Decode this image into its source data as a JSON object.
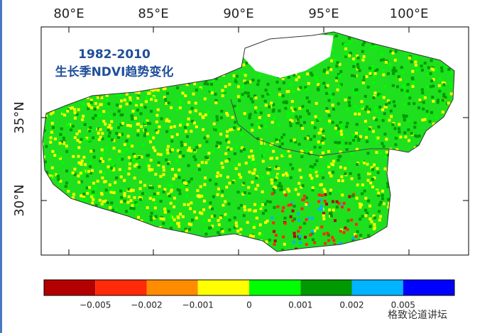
{
  "map": {
    "title": "1982-2010",
    "subtitle": "生长季NDVI趋势变化",
    "lon_ticks": [
      "80°E",
      "85°E",
      "90°E",
      "95°E",
      "100°E"
    ],
    "lat_ticks": [
      "35°N",
      "30°N"
    ]
  },
  "colorbar": {
    "colors": [
      "#b30000",
      "#ff2a0a",
      "#ff8c00",
      "#ffff00",
      "#00ff00",
      "#009a00",
      "#00b4ff",
      "#0000ff"
    ],
    "labels": [
      "−0.005",
      "−0.002",
      "−0.001",
      "0",
      "0.001",
      "0.002",
      "0.005"
    ]
  },
  "watermark": "格致论道讲坛"
}
